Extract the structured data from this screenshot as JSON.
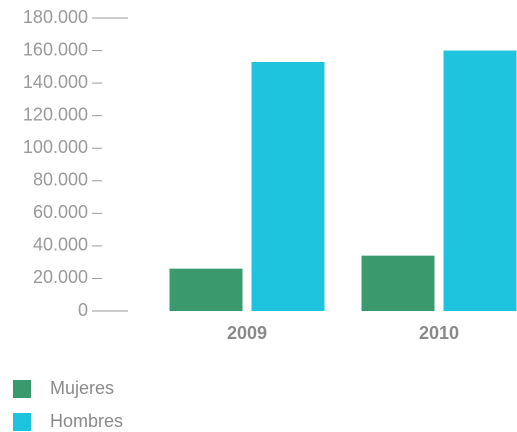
{
  "chart_data": {
    "type": "bar",
    "categories": [
      "2009",
      "2010"
    ],
    "series": [
      {
        "name": "Mujeres",
        "color": "#3a9a6e",
        "values": [
          26000,
          34000
        ]
      },
      {
        "name": "Hombres",
        "color": "#1ec3de",
        "values": [
          153000,
          160000
        ]
      }
    ],
    "ylim": [
      0,
      180000
    ],
    "yticks": [
      0,
      {
        "value": 20000,
        "label": "20.000"
      },
      {
        "value": 40000,
        "label": "40.000"
      },
      {
        "value": 60000,
        "label": "60.000"
      },
      {
        "value": 80000,
        "label": "80.000"
      },
      {
        "value": 100000,
        "label": "100.000"
      },
      {
        "value": 120000,
        "label": "120.000"
      },
      {
        "value": 140000,
        "label": "140.000"
      },
      {
        "value": 160000,
        "label": "160.000"
      },
      {
        "value": 180000,
        "label": "180.000"
      }
    ],
    "grid": false,
    "legend": "bottom-left"
  }
}
